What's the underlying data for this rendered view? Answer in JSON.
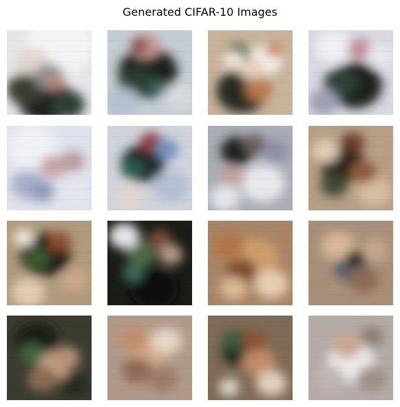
{
  "title": "Generated CIFAR-10 Images",
  "grid": {
    "rows": 4,
    "cols": 4
  },
  "images": [
    {
      "bg": "#e6e6ea",
      "spots": [
        [
          "#f4f4f6",
          0.62,
          0.18,
          0.4
        ],
        [
          "#e1d6cf",
          0.3,
          0.4,
          0.22
        ],
        [
          "#1a221c",
          0.45,
          0.82,
          0.32
        ],
        [
          "#3a3c33",
          0.22,
          0.7,
          0.22
        ],
        [
          "#2d4130",
          0.72,
          0.88,
          0.2
        ],
        [
          "#8c8f8e",
          0.5,
          0.55,
          0.18
        ],
        [
          "#bf8c82",
          0.58,
          0.62,
          0.1
        ]
      ]
    },
    {
      "bg": "#c4ccd4",
      "spots": [
        [
          "#1d211e",
          0.48,
          0.5,
          0.35
        ],
        [
          "#2a3c33",
          0.35,
          0.62,
          0.22
        ],
        [
          "#c89c94",
          0.45,
          0.18,
          0.18
        ],
        [
          "#7f3933",
          0.38,
          0.18,
          0.1
        ],
        [
          "#b6c1cf",
          0.18,
          0.85,
          0.2
        ],
        [
          "#d9dadf",
          0.85,
          0.78,
          0.18
        ],
        [
          "#3f6a5e",
          0.6,
          0.68,
          0.1
        ]
      ]
    },
    {
      "bg": "#c8b39c",
      "spots": [
        [
          "#262b22",
          0.4,
          0.72,
          0.3
        ],
        [
          "#f6f3ef",
          0.68,
          0.35,
          0.2
        ],
        [
          "#e6d2bf",
          0.52,
          0.45,
          0.16
        ],
        [
          "#d0825f",
          0.78,
          0.24,
          0.1
        ],
        [
          "#3e5e42",
          0.35,
          0.28,
          0.14
        ],
        [
          "#b97a4d",
          0.6,
          0.7,
          0.16
        ],
        [
          "#f5e9de",
          0.3,
          0.35,
          0.12
        ]
      ]
    },
    {
      "bg": "#d8d8e2",
      "spots": [
        [
          "#1b211c",
          0.55,
          0.65,
          0.32
        ],
        [
          "#f2f0f6",
          0.3,
          0.2,
          0.22
        ],
        [
          "#c08a93",
          0.6,
          0.22,
          0.14
        ],
        [
          "#2e4336",
          0.38,
          0.62,
          0.2
        ],
        [
          "#9ea0b3",
          0.18,
          0.85,
          0.18
        ],
        [
          "#e9e8ef",
          0.85,
          0.3,
          0.16
        ]
      ]
    },
    {
      "bg": "#dfe2ec",
      "spots": [
        [
          "#f0f2f8",
          0.3,
          0.25,
          0.3
        ],
        [
          "#a7b0c9",
          0.25,
          0.7,
          0.2
        ],
        [
          "#c8a2a8",
          0.55,
          0.48,
          0.16
        ],
        [
          "#b79aa0",
          0.78,
          0.42,
          0.14
        ],
        [
          "#8f99b8",
          0.42,
          0.78,
          0.14
        ],
        [
          "#e4e6ee",
          0.8,
          0.78,
          0.2
        ]
      ]
    },
    {
      "bg": "#cfd4dc",
      "spots": [
        [
          "#1e2522",
          0.42,
          0.45,
          0.26
        ],
        [
          "#8b3b3a",
          0.52,
          0.2,
          0.14
        ],
        [
          "#2b5d52",
          0.3,
          0.52,
          0.14
        ],
        [
          "#b5bfd2",
          0.75,
          0.72,
          0.22
        ],
        [
          "#e2d5cf",
          0.25,
          0.82,
          0.18
        ],
        [
          "#6f8fba",
          0.7,
          0.28,
          0.14
        ]
      ]
    },
    {
      "bg": "#a9adb6",
      "spots": [
        [
          "#e8e8ee",
          0.65,
          0.68,
          0.26
        ],
        [
          "#1f231f",
          0.35,
          0.3,
          0.2
        ],
        [
          "#6a5e58",
          0.55,
          0.22,
          0.14
        ],
        [
          "#c3a099",
          0.3,
          0.6,
          0.14
        ],
        [
          "#e5e7ee",
          0.2,
          0.85,
          0.18
        ],
        [
          "#8e8fa8",
          0.8,
          0.3,
          0.16
        ]
      ]
    },
    {
      "bg": "#b79f86",
      "spots": [
        [
          "#2a221b",
          0.4,
          0.45,
          0.26
        ],
        [
          "#d8bfa3",
          0.78,
          0.78,
          0.2
        ],
        [
          "#6b3a2a",
          0.52,
          0.2,
          0.14
        ],
        [
          "#3f4a34",
          0.3,
          0.7,
          0.16
        ],
        [
          "#e0ccb5",
          0.2,
          0.3,
          0.16
        ],
        [
          "#905b3b",
          0.65,
          0.55,
          0.16
        ]
      ]
    },
    {
      "bg": "#b09a7e",
      "spots": [
        [
          "#1a1e17",
          0.45,
          0.4,
          0.3
        ],
        [
          "#3b5a31",
          0.35,
          0.45,
          0.16
        ],
        [
          "#e2cbb2",
          0.25,
          0.85,
          0.2
        ],
        [
          "#8a4e2d",
          0.62,
          0.25,
          0.14
        ],
        [
          "#cba98b",
          0.8,
          0.7,
          0.16
        ],
        [
          "#f0e8df",
          0.2,
          0.2,
          0.12
        ]
      ]
    },
    {
      "bg": "#1a1c16",
      "spots": [
        [
          "#4b6a45",
          0.4,
          0.4,
          0.18
        ],
        [
          "#e6e6ea",
          0.2,
          0.18,
          0.18
        ],
        [
          "#7a4a35",
          0.62,
          0.22,
          0.14
        ],
        [
          "#b59c89",
          0.75,
          0.4,
          0.14
        ],
        [
          "#0e100c",
          0.55,
          0.8,
          0.28
        ],
        [
          "#3c6e5a",
          0.3,
          0.62,
          0.12
        ]
      ]
    },
    {
      "bg": "#a88566",
      "spots": [
        [
          "#cf9d6c",
          0.55,
          0.45,
          0.28
        ],
        [
          "#7c4b2c",
          0.4,
          0.6,
          0.18
        ],
        [
          "#e6ceb3",
          0.75,
          0.75,
          0.2
        ],
        [
          "#b27447",
          0.25,
          0.3,
          0.18
        ],
        [
          "#dcb994",
          0.3,
          0.8,
          0.16
        ]
      ]
    },
    {
      "bg": "#a88f7a",
      "spots": [
        [
          "#5a5f6a",
          0.5,
          0.55,
          0.2
        ],
        [
          "#d8b999",
          0.35,
          0.3,
          0.2
        ],
        [
          "#8a6a55",
          0.65,
          0.7,
          0.18
        ],
        [
          "#c4a98e",
          0.78,
          0.35,
          0.16
        ],
        [
          "#2e2a26",
          0.55,
          0.45,
          0.12
        ]
      ]
    },
    {
      "bg": "#3a3c2f",
      "spots": [
        [
          "#1b1e17",
          0.35,
          0.3,
          0.26
        ],
        [
          "#c7a38a",
          0.55,
          0.6,
          0.2
        ],
        [
          "#8b6a55",
          0.42,
          0.75,
          0.18
        ],
        [
          "#3f6840",
          0.3,
          0.45,
          0.14
        ],
        [
          "#b9937a",
          0.7,
          0.5,
          0.16
        ],
        [
          "#242a22",
          0.8,
          0.82,
          0.16
        ]
      ]
    },
    {
      "bg": "#b1998a",
      "spots": [
        [
          "#d0a988",
          0.5,
          0.4,
          0.24
        ],
        [
          "#8c6a57",
          0.35,
          0.65,
          0.18
        ],
        [
          "#e7d7c9",
          0.7,
          0.3,
          0.18
        ],
        [
          "#9c7a6a",
          0.65,
          0.75,
          0.18
        ],
        [
          "#c38c6b",
          0.3,
          0.28,
          0.16
        ]
      ]
    },
    {
      "bg": "#7f6a57",
      "spots": [
        [
          "#1f221b",
          0.4,
          0.4,
          0.24
        ],
        [
          "#c08c66",
          0.6,
          0.55,
          0.2
        ],
        [
          "#e2d0bd",
          0.75,
          0.8,
          0.18
        ],
        [
          "#3b5a3a",
          0.3,
          0.3,
          0.14
        ],
        [
          "#8a5235",
          0.55,
          0.3,
          0.14
        ],
        [
          "#ddd8d2",
          0.25,
          0.85,
          0.12
        ]
      ]
    },
    {
      "bg": "#b4aba7",
      "spots": [
        [
          "#eeeae8",
          0.5,
          0.55,
          0.28
        ],
        [
          "#c9a790",
          0.45,
          0.35,
          0.18
        ],
        [
          "#9f8f88",
          0.75,
          0.75,
          0.18
        ],
        [
          "#bfb6b2",
          0.25,
          0.75,
          0.18
        ],
        [
          "#8b7e77",
          0.75,
          0.25,
          0.14
        ]
      ]
    }
  ]
}
